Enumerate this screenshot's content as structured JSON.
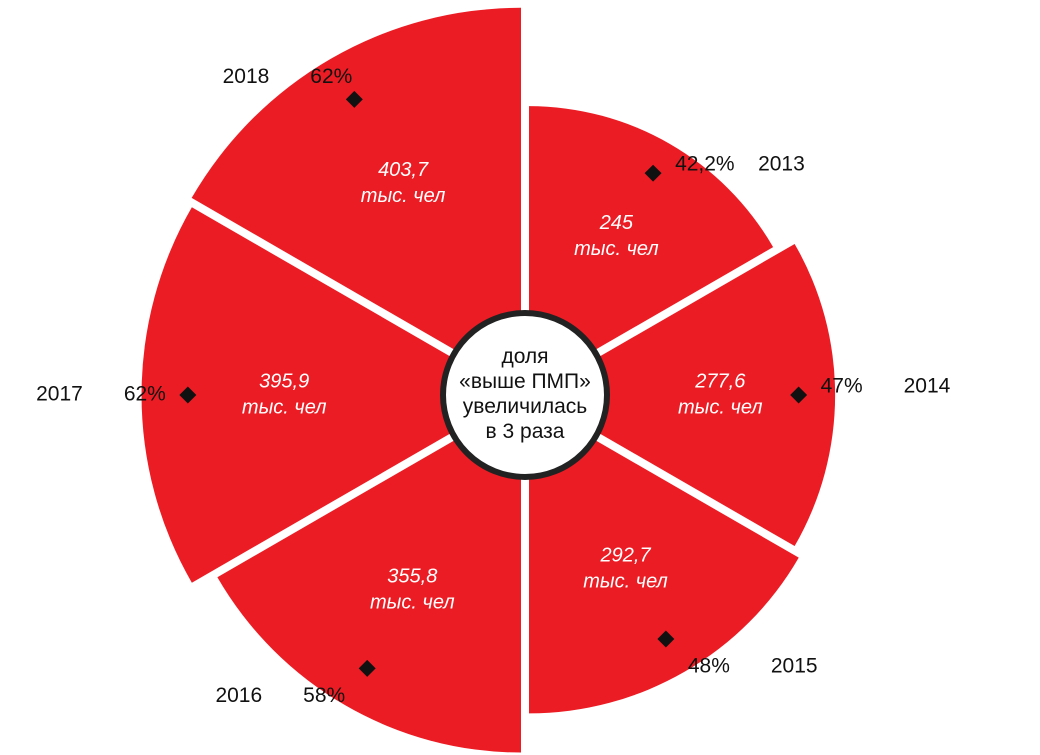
{
  "chart_data": {
    "type": "polar_area",
    "categories": [
      "2013",
      "2014",
      "2015",
      "2016",
      "2017",
      "2018"
    ],
    "values": [
      245,
      277.6,
      292.7,
      355.8,
      395.9,
      403.7
    ],
    "value_labels": [
      "245",
      "277,6",
      "292,7",
      "355,8",
      "395,9",
      "403,7"
    ],
    "value_unit": "тыс. чел",
    "shares": [
      42.2,
      47,
      48,
      58,
      62,
      62
    ],
    "share_labels": [
      "42,2%",
      "47%",
      "48%",
      "58%",
      "62%",
      "62%"
    ],
    "color": "#ec1c24",
    "center_label": [
      "доля",
      "«выше ПМП»",
      "увеличилась",
      "в 3 раза"
    ]
  }
}
